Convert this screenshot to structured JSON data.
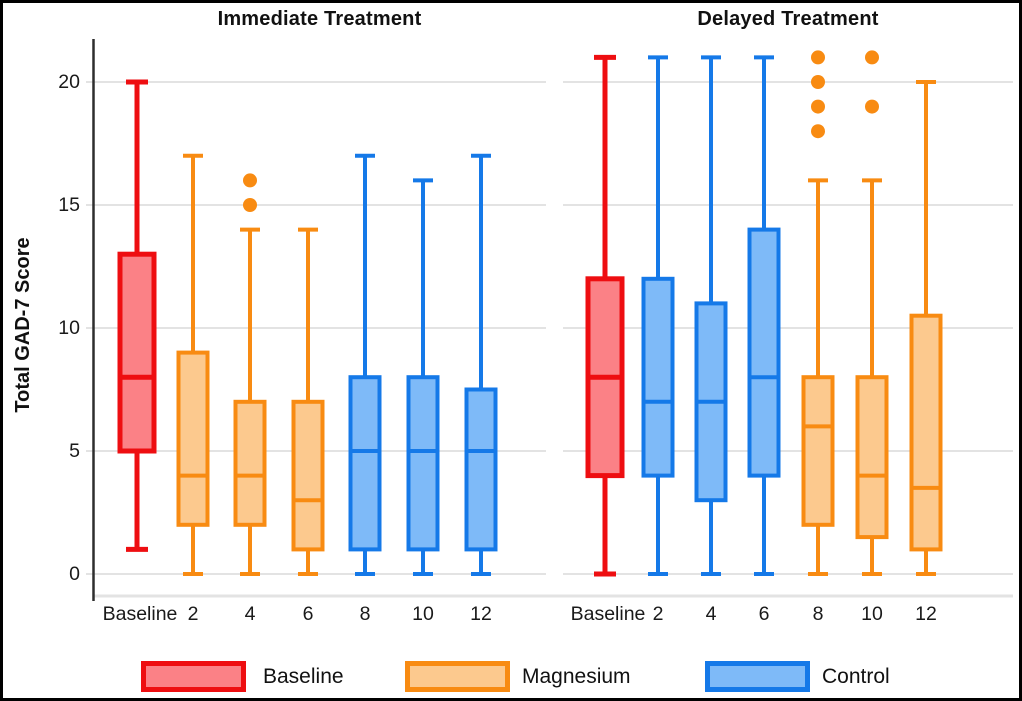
{
  "chart_data": {
    "type": "boxplot",
    "title": "",
    "xlabel": "",
    "ylabel": "Total GAD-7 Score",
    "ylim": [
      -0.9,
      21.8
    ],
    "yticks": [
      0,
      5,
      10,
      15,
      20
    ],
    "grid": "horizontal light-gray lines at y ticks, white background, no top/right frame",
    "categories": [
      "Baseline",
      "2",
      "4",
      "6",
      "8",
      "10",
      "12"
    ],
    "series_colors": {
      "baseline": {
        "stroke": "#ee0e11",
        "fill": "#fb8186"
      },
      "magnesium": {
        "stroke": "#f88b12",
        "fill": "#fcc98e"
      },
      "control": {
        "stroke": "#1579e8",
        "fill": "#7ebaf8"
      }
    },
    "panels": [
      {
        "title": "Immediate Treatment",
        "boxes": [
          {
            "category": "Baseline",
            "group": "baseline",
            "whisker_low": 1,
            "q1": 5,
            "median": 8,
            "q3": 13,
            "whisker_high": 20,
            "outliers": []
          },
          {
            "category": "2",
            "group": "magnesium",
            "whisker_low": 0,
            "q1": 2,
            "median": 4,
            "q3": 9,
            "whisker_high": 17,
            "outliers": []
          },
          {
            "category": "4",
            "group": "magnesium",
            "whisker_low": 0,
            "q1": 2,
            "median": 4,
            "q3": 7,
            "whisker_high": 14,
            "outliers": [
              15,
              16
            ]
          },
          {
            "category": "6",
            "group": "magnesium",
            "whisker_low": 0,
            "q1": 1,
            "median": 3,
            "q3": 7,
            "whisker_high": 14,
            "outliers": []
          },
          {
            "category": "8",
            "group": "control",
            "whisker_low": 0,
            "q1": 1,
            "median": 5,
            "q3": 8,
            "whisker_high": 17,
            "outliers": []
          },
          {
            "category": "10",
            "group": "control",
            "whisker_low": 0,
            "q1": 1,
            "median": 5,
            "q3": 8,
            "whisker_high": 16,
            "outliers": []
          },
          {
            "category": "12",
            "group": "control",
            "whisker_low": 0,
            "q1": 1,
            "median": 5,
            "q3": 7.5,
            "whisker_high": 17,
            "outliers": []
          }
        ]
      },
      {
        "title": "Delayed Treatment",
        "boxes": [
          {
            "category": "Baseline",
            "group": "baseline",
            "whisker_low": 0,
            "q1": 4,
            "median": 8,
            "q3": 12,
            "whisker_high": 21,
            "outliers": []
          },
          {
            "category": "2",
            "group": "control",
            "whisker_low": 0,
            "q1": 4,
            "median": 7,
            "q3": 12,
            "whisker_high": 21,
            "outliers": []
          },
          {
            "category": "4",
            "group": "control",
            "whisker_low": 0,
            "q1": 3,
            "median": 7,
            "q3": 11,
            "whisker_high": 21,
            "outliers": []
          },
          {
            "category": "6",
            "group": "control",
            "whisker_low": 0,
            "q1": 4,
            "median": 8,
            "q3": 14,
            "whisker_high": 21,
            "outliers": []
          },
          {
            "category": "8",
            "group": "magnesium",
            "whisker_low": 0,
            "q1": 2,
            "median": 6,
            "q3": 8,
            "whisker_high": 16,
            "outliers": [
              18,
              19,
              20,
              21
            ]
          },
          {
            "category": "10",
            "group": "magnesium",
            "whisker_low": 0,
            "q1": 1.5,
            "median": 4,
            "q3": 8,
            "whisker_high": 16,
            "outliers": [
              19,
              21
            ]
          },
          {
            "category": "12",
            "group": "magnesium",
            "whisker_low": 0,
            "q1": 1,
            "median": 3.5,
            "q3": 10.5,
            "whisker_high": 20,
            "outliers": []
          }
        ]
      }
    ],
    "legend": {
      "position": "bottom",
      "items": [
        {
          "label": "Baseline",
          "group": "baseline"
        },
        {
          "label": "Magnesium",
          "group": "magnesium"
        },
        {
          "label": "Control",
          "group": "control"
        }
      ]
    }
  }
}
